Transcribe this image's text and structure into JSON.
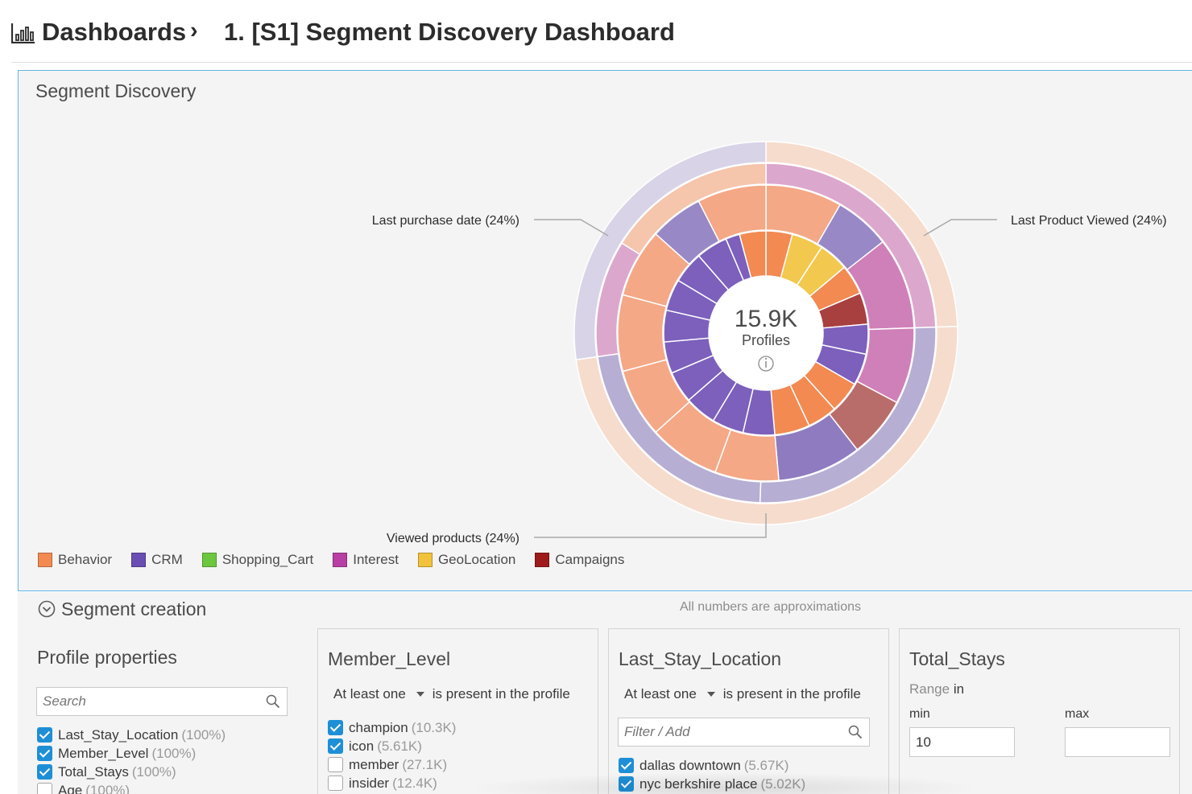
{
  "header": {
    "breadcrumb_root": "Dashboards",
    "breadcrumb_sep": "›",
    "page_title": "1. [S1] Segment Discovery Dashboard",
    "icon": "bar-chart-icon"
  },
  "discovery": {
    "title": "Segment Discovery",
    "center_value": "15.9K",
    "center_label": "Profiles",
    "info_icon": "info-icon",
    "callouts": {
      "left": "Last purchase date (24%)",
      "right": "Last Product Viewed (24%)",
      "bottom": "Viewed products (24%)"
    },
    "legend": [
      {
        "label": "Behavior",
        "color": "#f28a52"
      },
      {
        "label": "CRM",
        "color": "#6a4eb4"
      },
      {
        "label": "Shopping_Cart",
        "color": "#6cc73f"
      },
      {
        "label": "Interest",
        "color": "#b83fa4"
      },
      {
        "label": "GeoLocation",
        "color": "#f2c23c"
      },
      {
        "label": "Campaigns",
        "color": "#9e1b1b"
      }
    ]
  },
  "segment_creation": {
    "title": "Segment creation",
    "note": "All numbers are approximations",
    "collapse_icon": "chevron-circle-icon",
    "profile_properties": {
      "title": "Profile properties",
      "search_placeholder": "Search",
      "items": [
        {
          "label": "Last_Stay_Location",
          "count": "(100%)",
          "checked": true
        },
        {
          "label": "Member_Level",
          "count": "(100%)",
          "checked": true
        },
        {
          "label": "Total_Stays",
          "count": "(100%)",
          "checked": true
        },
        {
          "label": "Age",
          "count": "(100%)",
          "checked": false
        }
      ]
    },
    "member_level": {
      "title": "Member_Level",
      "qualifier": "At least one",
      "condition": "is present in the profile",
      "items": [
        {
          "label": "champion",
          "count": "(10.3K)",
          "checked": true
        },
        {
          "label": "icon",
          "count": "(5.61K)",
          "checked": true
        },
        {
          "label": "member",
          "count": "(27.1K)",
          "checked": false
        },
        {
          "label": "insider",
          "count": "(12.4K)",
          "checked": false
        }
      ]
    },
    "last_stay_location": {
      "title": "Last_Stay_Location",
      "qualifier": "At least one",
      "condition": "is present in the profile",
      "filter_placeholder": "Filter / Add",
      "items": [
        {
          "label": "dallas downtown",
          "count": "(5.67K)",
          "checked": true
        },
        {
          "label": "nyc berkshire place",
          "count": "(5.02K)",
          "checked": true
        }
      ]
    },
    "total_stays": {
      "title": "Total_Stays",
      "range_word": "Range",
      "range_in": "in",
      "min_label": "min",
      "max_label": "max",
      "min_value": "10",
      "max_value": ""
    }
  }
}
